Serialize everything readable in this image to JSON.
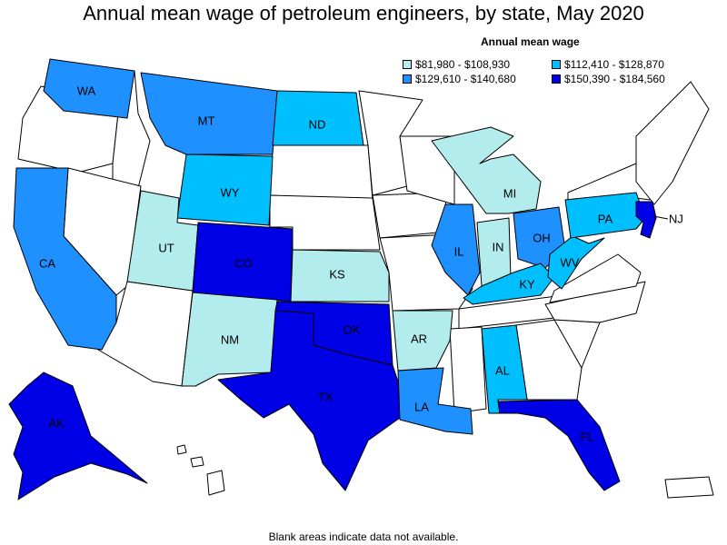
{
  "title": "Annual mean wage of petroleum engineers, by state, May 2020",
  "legend": {
    "title": "Annual mean wage",
    "items": [
      {
        "label": "$81,980 - $108,930",
        "color": "#b3ecec"
      },
      {
        "label": "$112,410 - $128,870",
        "color": "#00bfff"
      },
      {
        "label": "$129,610 - $140,680",
        "color": "#1e90ff"
      },
      {
        "label": "$150,390 - $184,560",
        "color": "#0000e6"
      }
    ]
  },
  "footer": "Blank areas indicate data not available.",
  "colors": {
    "blank": "#ffffff",
    "tier1": "#b3ecec",
    "tier2": "#00bfff",
    "tier3": "#1e90ff",
    "tier4": "#0000e6"
  },
  "states": [
    {
      "abbr": "WA",
      "tier": 3
    },
    {
      "abbr": "MT",
      "tier": 3
    },
    {
      "abbr": "ND",
      "tier": 2
    },
    {
      "abbr": "WY",
      "tier": 2
    },
    {
      "abbr": "CA",
      "tier": 3
    },
    {
      "abbr": "UT",
      "tier": 1
    },
    {
      "abbr": "CO",
      "tier": 4
    },
    {
      "abbr": "KS",
      "tier": 1
    },
    {
      "abbr": "NM",
      "tier": 1
    },
    {
      "abbr": "OK",
      "tier": 4
    },
    {
      "abbr": "TX",
      "tier": 4
    },
    {
      "abbr": "AR",
      "tier": 1
    },
    {
      "abbr": "LA",
      "tier": 3
    },
    {
      "abbr": "AL",
      "tier": 2
    },
    {
      "abbr": "FL",
      "tier": 4
    },
    {
      "abbr": "IL",
      "tier": 3
    },
    {
      "abbr": "IN",
      "tier": 1
    },
    {
      "abbr": "MI",
      "tier": 1
    },
    {
      "abbr": "OH",
      "tier": 3
    },
    {
      "abbr": "KY",
      "tier": 2
    },
    {
      "abbr": "WV",
      "tier": 2
    },
    {
      "abbr": "PA",
      "tier": 2
    },
    {
      "abbr": "NJ",
      "tier": 4
    },
    {
      "abbr": "AK",
      "tier": 4
    }
  ]
}
